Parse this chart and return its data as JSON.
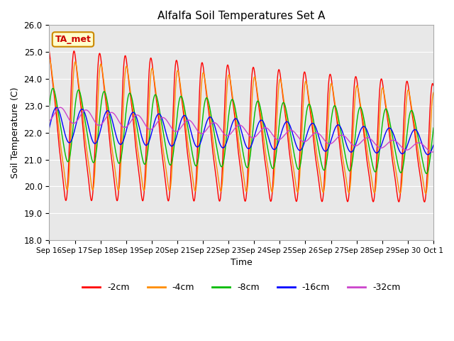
{
  "title": "Alfalfa Soil Temperatures Set A",
  "ylabel": "Soil Temperature (C)",
  "xlabel": "Time",
  "ylim": [
    18.0,
    26.0
  ],
  "yticks": [
    18.0,
    19.0,
    20.0,
    21.0,
    22.0,
    23.0,
    24.0,
    25.0,
    26.0
  ],
  "xtick_labels": [
    "Sep 16",
    "Sep 17",
    "Sep 18",
    "Sep 19",
    "Sep 20",
    "Sep 21",
    "Sep 22",
    "Sep 23",
    "Sep 24",
    "Sep 25",
    "Sep 26",
    "Sep 27",
    "Sep 28",
    "Sep 29",
    "Sep 30",
    "Oct 1"
  ],
  "series_colors": [
    "#ff0000",
    "#ff8c00",
    "#00bb00",
    "#0000ff",
    "#cc44cc"
  ],
  "series_labels": [
    "-2cm",
    "-4cm",
    "-8cm",
    "-16cm",
    "-32cm"
  ],
  "annotation_text": "TA_met",
  "annotation_facecolor": "#ffffcc",
  "annotation_edgecolor": "#cc8800",
  "background_color": "#e8e8e8",
  "grid_color": "#ffffff",
  "n_points": 1500,
  "xlim": [
    0,
    15
  ]
}
